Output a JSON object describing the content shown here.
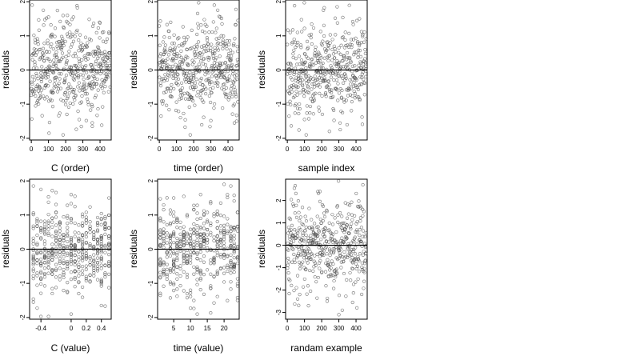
{
  "chart_data": [
    {
      "type": "scatter",
      "id": "c-order",
      "xlabel": "C (order)",
      "ylabel": "residuals",
      "xlim": [
        -10,
        465
      ],
      "ylim": [
        -2.05,
        2.05
      ],
      "xticks": [
        0,
        100,
        200,
        300,
        400
      ],
      "yticks": [
        -2,
        -1,
        0,
        1,
        2
      ],
      "reference_line_y": 0,
      "grid": false,
      "n_points": 460,
      "x_pattern": "index",
      "y_spread": 0.65,
      "seed": 11,
      "points_sample": [
        [
          5,
          1.9
        ],
        [
          70,
          1.75
        ],
        [
          100,
          1.55
        ],
        [
          210,
          1.6
        ],
        [
          245,
          1.55
        ],
        [
          185,
          -1.9
        ],
        [
          355,
          -1.55
        ],
        [
          355,
          -1.65
        ]
      ]
    },
    {
      "type": "scatter",
      "id": "time-order",
      "xlabel": "time (order)",
      "ylabel": "residuals",
      "xlim": [
        -10,
        465
      ],
      "ylim": [
        -2.05,
        2.05
      ],
      "xticks": [
        0,
        100,
        200,
        300,
        400
      ],
      "yticks": [
        -2,
        -1,
        0,
        1,
        2
      ],
      "reference_line_y": 0,
      "grid": false,
      "n_points": 460,
      "x_pattern": "index",
      "y_spread": 0.65,
      "seed": 23,
      "points_sample": [
        [
          320,
          1.9
        ],
        [
          340,
          1.75
        ],
        [
          355,
          1.55
        ],
        [
          10,
          -1.35
        ],
        [
          180,
          -1.9
        ],
        [
          450,
          -1.5
        ]
      ]
    },
    {
      "type": "scatter",
      "id": "sample-index",
      "xlabel": "sample index",
      "ylabel": "residuals",
      "xlim": [
        -10,
        465
      ],
      "ylim": [
        -2.05,
        2.05
      ],
      "xticks": [
        0,
        100,
        200,
        300,
        400
      ],
      "yticks": [
        -2,
        -1,
        0,
        1,
        2
      ],
      "reference_line_y": 0,
      "grid": false,
      "n_points": 460,
      "x_pattern": "index",
      "y_spread": 0.65,
      "seed": 37,
      "points_sample": [
        [
          210,
          1.75
        ],
        [
          290,
          1.85
        ],
        [
          110,
          -1.9
        ],
        [
          100,
          -1.45
        ],
        [
          420,
          1.5
        ],
        [
          50,
          -1.0
        ]
      ]
    },
    {
      "type": "scatter",
      "id": "c-value",
      "xlabel": "C (value)",
      "ylabel": "residuals",
      "xlim": [
        -0.55,
        0.53
      ],
      "ylim": [
        -2.05,
        2.05
      ],
      "xticks": [
        -0.4,
        0.0,
        0.2,
        0.4
      ],
      "yticks": [
        -2,
        -1,
        0,
        1,
        2
      ],
      "reference_line_y": 0,
      "grid": false,
      "n_points": 460,
      "x_pattern": "discrete",
      "x_levels": [
        -0.5,
        -0.45,
        -0.4,
        -0.35,
        -0.3,
        -0.25,
        -0.2,
        -0.15,
        -0.1,
        -0.05,
        0.0,
        0.05,
        0.1,
        0.15,
        0.2,
        0.25,
        0.3,
        0.35,
        0.4,
        0.45,
        0.5
      ],
      "y_spread": 0.65,
      "seed": 41,
      "points_sample": [
        [
          -0.5,
          1.85
        ],
        [
          -0.4,
          1.75
        ],
        [
          0.0,
          1.6
        ],
        [
          0.05,
          1.55
        ],
        [
          0.1,
          -1.3
        ],
        [
          0.4,
          -1.65
        ],
        [
          0.0,
          -1.9
        ]
      ]
    },
    {
      "type": "scatter",
      "id": "time-value",
      "xlabel": "time (value)",
      "ylabel": "residuals",
      "xlim": [
        0.2,
        24.5
      ],
      "ylim": [
        -2.05,
        2.05
      ],
      "xticks": [
        5,
        10,
        15,
        20
      ],
      "yticks": [
        -2,
        -1,
        0,
        1,
        2
      ],
      "reference_line_y": 0,
      "grid": false,
      "n_points": 460,
      "x_pattern": "discrete",
      "x_levels": [
        1,
        2,
        3,
        4,
        5,
        6,
        7,
        8,
        9,
        10,
        11,
        12,
        13,
        14,
        15,
        16,
        17,
        18,
        19,
        20,
        21,
        22,
        23,
        24
      ],
      "y_spread": 0.65,
      "seed": 53,
      "points_sample": [
        [
          20,
          1.9
        ],
        [
          22,
          1.85
        ],
        [
          13,
          1.6
        ],
        [
          1,
          -1.35
        ],
        [
          12,
          -1.9
        ],
        [
          24,
          -1.5
        ]
      ]
    },
    {
      "type": "scatter",
      "id": "random-example",
      "xlabel": "randam example",
      "ylabel": "residuals",
      "xlim": [
        -10,
        465
      ],
      "ylim": [
        -3.3,
        2.95
      ],
      "xticks": [
        0,
        100,
        200,
        300,
        400
      ],
      "yticks": [
        -3,
        -2,
        -1,
        0,
        1,
        2
      ],
      "reference_line_y": 0,
      "grid": false,
      "n_points": 460,
      "x_pattern": "index",
      "y_spread": 1.0,
      "seed": 67,
      "points_sample": [
        [
          440,
          2.7
        ],
        [
          190,
          2.4
        ],
        [
          300,
          -3.1
        ],
        [
          320,
          -2.9
        ],
        [
          60,
          -2.4
        ],
        [
          380,
          -2.55
        ]
      ]
    }
  ]
}
